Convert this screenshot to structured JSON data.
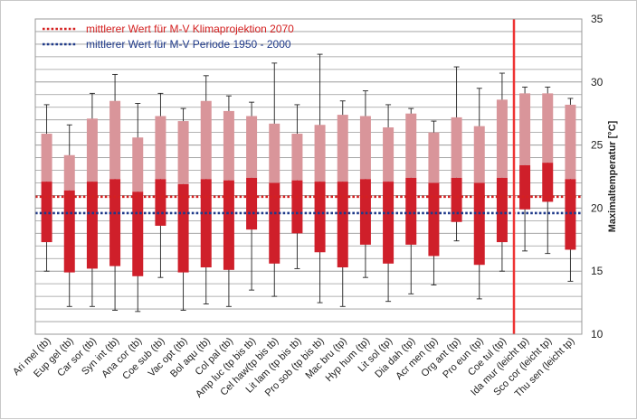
{
  "chart_data": {
    "type": "boxplot",
    "ylabel": "Maximaltemperatur [°C]",
    "ylim": [
      10,
      35
    ],
    "yticks": [
      10,
      15,
      20,
      25,
      30,
      35
    ],
    "grid": true,
    "categories": [
      "Ari mel (tb)",
      "Eup gel (tb)",
      "Car sor (tb)",
      "Syn int (tb)",
      "Ana cor (tb)",
      "Coe sub (tb)",
      "Vac opt (tb)",
      "Bol aqu (tb)",
      "Col pal (tb)",
      "Amp luc (tp bis tb)",
      "Cel haw(tp bis tb)",
      "Lit lam (tp bis tb)",
      "Pro sob (tp bis tb)",
      "Mac bru (tp)",
      "Hyp hum (tp)",
      "Lit sol (tp)",
      "Dia dah (tp)",
      "Acr men (tp)",
      "Org ant (tp)",
      "Pro eun (tp)",
      "Coe tul (tp)",
      "Ida mur (leicht tp)",
      "Sco cor (leicht tp)",
      "Thu sen (leicht tp)"
    ],
    "boxes": [
      {
        "min": 15.0,
        "q1": 17.3,
        "median": 22.1,
        "q3": 25.9,
        "max": 28.2
      },
      {
        "min": 12.2,
        "q1": 14.9,
        "median": 21.4,
        "q3": 24.2,
        "max": 26.6
      },
      {
        "min": 12.2,
        "q1": 15.2,
        "median": 22.1,
        "q3": 27.1,
        "max": 29.1
      },
      {
        "min": 11.9,
        "q1": 15.4,
        "median": 22.3,
        "q3": 28.5,
        "max": 30.6
      },
      {
        "min": 11.8,
        "q1": 14.6,
        "median": 21.3,
        "q3": 25.6,
        "max": 28.3
      },
      {
        "min": 14.5,
        "q1": 18.6,
        "median": 22.3,
        "q3": 27.3,
        "max": 29.1
      },
      {
        "min": 11.9,
        "q1": 14.9,
        "median": 21.9,
        "q3": 26.9,
        "max": 27.9
      },
      {
        "min": 12.4,
        "q1": 15.3,
        "median": 22.3,
        "q3": 28.5,
        "max": 30.5
      },
      {
        "min": 12.2,
        "q1": 15.1,
        "median": 22.2,
        "q3": 27.7,
        "max": 28.9
      },
      {
        "min": 13.5,
        "q1": 18.3,
        "median": 22.4,
        "q3": 27.3,
        "max": 28.4
      },
      {
        "min": 13.0,
        "q1": 15.6,
        "median": 22.0,
        "q3": 26.7,
        "max": 31.5
      },
      {
        "min": 15.2,
        "q1": 18.0,
        "median": 22.2,
        "q3": 25.9,
        "max": 28.2
      },
      {
        "min": 12.5,
        "q1": 16.5,
        "median": 22.1,
        "q3": 26.6,
        "max": 32.2
      },
      {
        "min": 12.2,
        "q1": 15.3,
        "median": 22.1,
        "q3": 27.4,
        "max": 28.5
      },
      {
        "min": 14.5,
        "q1": 17.1,
        "median": 22.3,
        "q3": 27.3,
        "max": 29.3
      },
      {
        "min": 12.6,
        "q1": 15.6,
        "median": 22.1,
        "q3": 26.4,
        "max": 28.2
      },
      {
        "min": 13.2,
        "q1": 17.1,
        "median": 22.4,
        "q3": 27.5,
        "max": 27.9
      },
      {
        "min": 13.9,
        "q1": 16.2,
        "median": 22.0,
        "q3": 26.0,
        "max": 26.9
      },
      {
        "min": 17.4,
        "q1": 18.9,
        "median": 22.4,
        "q3": 27.2,
        "max": 31.2
      },
      {
        "min": 12.8,
        "q1": 15.5,
        "median": 22.0,
        "q3": 26.5,
        "max": 29.5
      },
      {
        "min": 15.0,
        "q1": 17.3,
        "median": 22.4,
        "q3": 28.6,
        "max": 30.7
      },
      {
        "min": 16.6,
        "q1": 19.9,
        "median": 23.4,
        "q3": 29.1,
        "max": 29.6
      },
      {
        "min": 16.4,
        "q1": 20.5,
        "median": 23.6,
        "q3": 29.1,
        "max": 29.6
      },
      {
        "min": 14.2,
        "q1": 16.7,
        "median": 22.3,
        "q3": 28.2,
        "max": 28.7
      }
    ],
    "reference_lines": [
      {
        "name": "mittlerer Wert für M-V Klimaprojektion 2070",
        "value": 20.9,
        "color": "#d42020"
      },
      {
        "name": "mittlerer Wert für M-V Periode 1950 - 2000",
        "value": 19.6,
        "color": "#1f3a8a"
      }
    ],
    "separator_after_category": 20,
    "colors": {
      "upper_box": "#d9959a",
      "lower_box": "#cf1f2a",
      "separator": "#ee3333",
      "grid": "#9a9a9a",
      "whisker": "#222222"
    }
  }
}
